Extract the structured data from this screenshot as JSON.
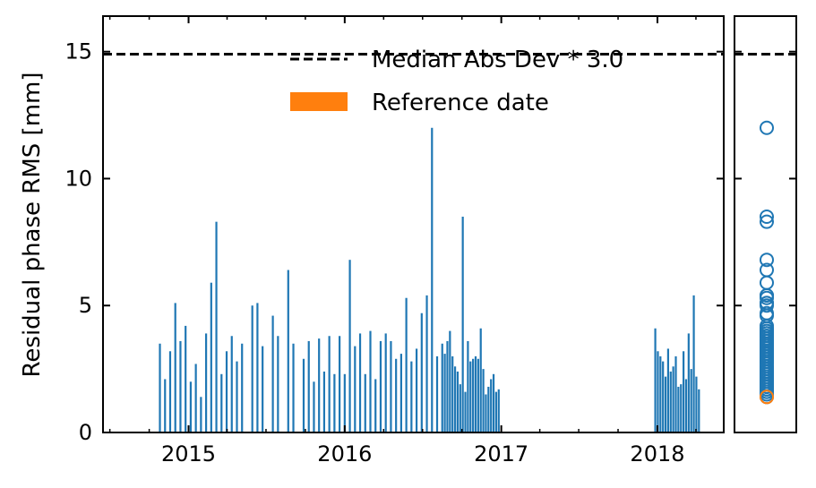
{
  "chart_data": {
    "type": "bar",
    "ylabel": "Residual phase RMS [mm]",
    "ylim": [
      0,
      16.4
    ],
    "yticks": [
      0,
      5,
      10,
      15
    ],
    "xlim": [
      "2014-06-15",
      "2018-06-05"
    ],
    "xticks": [
      "2015",
      "2016",
      "2017",
      "2018"
    ],
    "threshold": {
      "label": "Median Abs Dev * 3.0",
      "value": 14.9
    },
    "reference": {
      "label": "Reference date",
      "date": "2015-01-14",
      "value": 1.4
    },
    "colors": {
      "bars": "#1f77b4",
      "reference": "#ff7f0e",
      "threshold": "#000000"
    },
    "legend_position": "upper-right",
    "dates": [
      "2014-10-26",
      "2014-11-07",
      "2014-11-19",
      "2014-12-01",
      "2014-12-13",
      "2014-12-25",
      "2015-01-06",
      "2015-01-18",
      "2015-01-30",
      "2015-02-11",
      "2015-02-23",
      "2015-03-07",
      "2015-03-19",
      "2015-03-31",
      "2015-04-12",
      "2015-04-24",
      "2015-05-06",
      "2015-05-30",
      "2015-06-11",
      "2015-06-23",
      "2015-07-17",
      "2015-07-29",
      "2015-08-22",
      "2015-09-03",
      "2015-09-27",
      "2015-10-09",
      "2015-10-21",
      "2015-11-02",
      "2015-11-14",
      "2015-11-26",
      "2015-12-08",
      "2015-12-20",
      "2016-01-01",
      "2016-01-13",
      "2016-01-25",
      "2016-02-06",
      "2016-02-18",
      "2016-03-01",
      "2016-03-13",
      "2016-03-25",
      "2016-04-06",
      "2016-04-18",
      "2016-04-30",
      "2016-05-12",
      "2016-05-24",
      "2016-06-05",
      "2016-06-17",
      "2016-06-29",
      "2016-07-11",
      "2016-07-23",
      "2016-08-04",
      "2016-08-16",
      "2016-08-22",
      "2016-08-28",
      "2016-09-03",
      "2016-09-09",
      "2016-09-15",
      "2016-09-21",
      "2016-09-27",
      "2016-10-03",
      "2016-10-09",
      "2016-10-15",
      "2016-10-21",
      "2016-10-27",
      "2016-11-02",
      "2016-11-08",
      "2016-11-14",
      "2016-11-20",
      "2016-11-26",
      "2016-12-02",
      "2016-12-08",
      "2016-12-14",
      "2016-12-20",
      "2016-12-26",
      "2017-12-27",
      "2018-01-02",
      "2018-01-08",
      "2018-01-14",
      "2018-01-20",
      "2018-01-26",
      "2018-02-01",
      "2018-02-07",
      "2018-02-13",
      "2018-02-19",
      "2018-02-25",
      "2018-03-03",
      "2018-03-09",
      "2018-03-15",
      "2018-03-21",
      "2018-03-27",
      "2018-04-02",
      "2018-04-08"
    ],
    "values": [
      3.5,
      2.1,
      3.2,
      5.1,
      3.6,
      4.2,
      2.0,
      2.7,
      1.4,
      3.9,
      5.9,
      8.3,
      2.3,
      3.2,
      3.8,
      2.8,
      3.5,
      5.0,
      5.1,
      3.4,
      4.6,
      3.8,
      6.4,
      3.5,
      2.9,
      3.6,
      2.0,
      3.7,
      2.4,
      3.8,
      2.3,
      3.8,
      2.3,
      6.8,
      3.4,
      3.9,
      2.3,
      4.0,
      2.1,
      3.6,
      3.9,
      3.6,
      2.9,
      3.1,
      5.3,
      2.8,
      3.3,
      4.7,
      5.4,
      12.0,
      3.0,
      3.5,
      3.1,
      3.6,
      4.0,
      3.0,
      2.6,
      2.4,
      1.9,
      8.5,
      1.6,
      3.6,
      2.8,
      2.9,
      3.0,
      2.9,
      4.1,
      2.5,
      1.5,
      1.8,
      2.1,
      2.3,
      1.6,
      1.7,
      4.1,
      3.2,
      3.0,
      2.8,
      2.2,
      3.3,
      2.4,
      2.6,
      3.0,
      1.8,
      1.9,
      3.2,
      2.1,
      3.9,
      2.5,
      5.4,
      2.2,
      1.7
    ]
  }
}
